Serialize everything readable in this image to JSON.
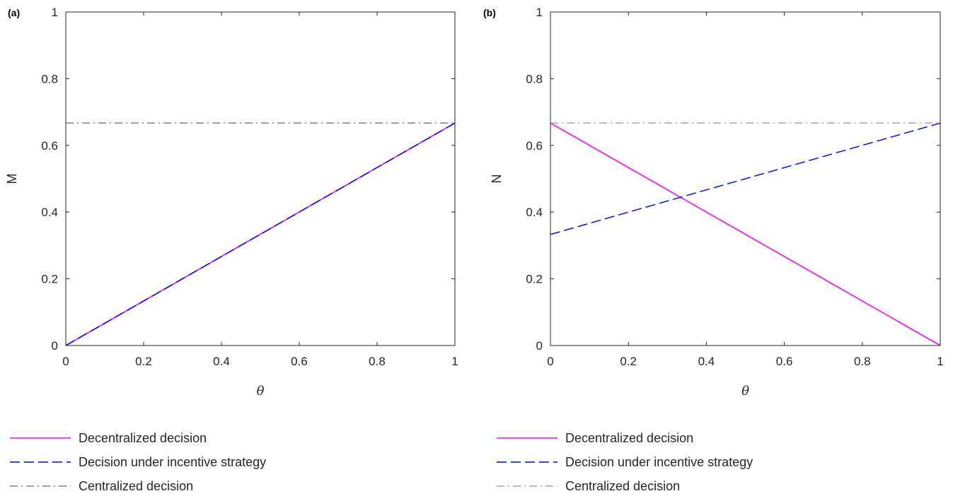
{
  "chart_data": [
    {
      "type": "line",
      "panel_label": "(a)",
      "xlabel": "θ",
      "ylabel": "M",
      "xlim": [
        0,
        1
      ],
      "ylim": [
        0,
        1
      ],
      "xticks": [
        "0",
        "0.2",
        "0.4",
        "0.6",
        "0.8",
        "1"
      ],
      "yticks": [
        "0",
        "0.2",
        "0.4",
        "0.6",
        "0.8",
        "1"
      ],
      "grid": false,
      "legend_position": "bottom",
      "series": [
        {
          "name": "Decentralized decision",
          "color": "#ff00ff",
          "style": "solid",
          "x": [
            0,
            1
          ],
          "y": [
            0,
            0.667
          ]
        },
        {
          "name": "Decision under incentive strategy",
          "color": "#0000ff",
          "style": "dashed",
          "x": [
            0,
            1
          ],
          "y": [
            0,
            0.667
          ]
        },
        {
          "name": "Centralized decision",
          "color": "#7f7f7f",
          "style": "dashdot",
          "x": [
            0,
            1
          ],
          "y": [
            0.667,
            0.667
          ]
        }
      ]
    },
    {
      "type": "line",
      "panel_label": "(b)",
      "xlabel": "θ",
      "ylabel": "N",
      "xlim": [
        0,
        1
      ],
      "ylim": [
        0,
        1
      ],
      "xticks": [
        "0",
        "0.2",
        "0.4",
        "0.6",
        "0.8",
        "1"
      ],
      "yticks": [
        "0",
        "0.2",
        "0.4",
        "0.6",
        "0.8",
        "1"
      ],
      "grid": false,
      "legend_position": "bottom",
      "series": [
        {
          "name": "Decentralized decision",
          "color": "#ff00ff",
          "style": "solid",
          "x": [
            0,
            1
          ],
          "y": [
            0.667,
            0
          ]
        },
        {
          "name": "Decision under incentive strategy",
          "color": "#0000ff",
          "style": "dashed",
          "x": [
            0,
            1
          ],
          "y": [
            0.333,
            0.667
          ]
        },
        {
          "name": "Centralized decision",
          "color": "#a6a6a6",
          "style": "dashdot",
          "x": [
            0,
            1
          ],
          "y": [
            0.667,
            0.667
          ]
        }
      ]
    }
  ]
}
